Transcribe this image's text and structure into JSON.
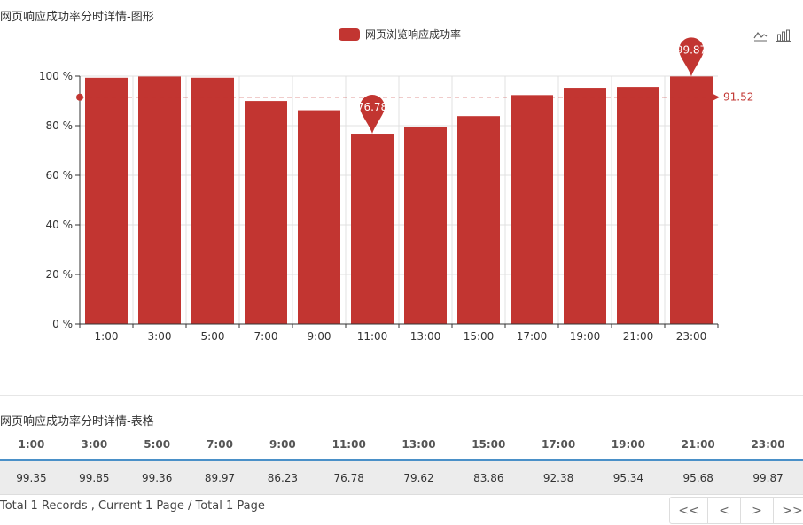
{
  "chart_section": {
    "title": "网页响应成功率分时详情-图形",
    "legend_label": "网页浏览响应成功率",
    "toolbox": {
      "line_icon": "line-chart-icon",
      "bar_icon": "bar-chart-icon"
    }
  },
  "chart_data": {
    "type": "bar",
    "categories": [
      "1:00",
      "3:00",
      "5:00",
      "7:00",
      "9:00",
      "11:00",
      "13:00",
      "15:00",
      "17:00",
      "19:00",
      "21:00",
      "23:00"
    ],
    "series": [
      {
        "name": "网页浏览响应成功率",
        "values": [
          99.35,
          99.85,
          99.36,
          89.97,
          86.23,
          76.78,
          79.62,
          83.86,
          92.38,
          95.34,
          95.68,
          99.87
        ],
        "color": "#c23531"
      }
    ],
    "ylim": [
      0,
      100
    ],
    "yticks": [
      0,
      20,
      40,
      60,
      80,
      100
    ],
    "ytick_labels": [
      "0 %",
      "20 %",
      "40 %",
      "60 %",
      "80 %",
      "100 %"
    ],
    "mark_points": [
      {
        "category": "11:00",
        "value": 76.78,
        "label": "76.78"
      },
      {
        "category": "23:00",
        "value": 99.87,
        "label": "99.87"
      }
    ],
    "mark_line": {
      "value": 91.52,
      "label": "91.52"
    },
    "grid": true,
    "legend_position": "top-center"
  },
  "table_section": {
    "title": "网页响应成功率分时详情-表格",
    "headers": [
      "1:00",
      "3:00",
      "5:00",
      "7:00",
      "9:00",
      "11:00",
      "13:00",
      "15:00",
      "17:00",
      "19:00",
      "21:00",
      "23:00"
    ],
    "row": [
      "99.35",
      "99.85",
      "99.36",
      "89.97",
      "86.23",
      "76.78",
      "79.62",
      "83.86",
      "92.38",
      "95.34",
      "95.68",
      "99.87"
    ]
  },
  "footer": {
    "info": "Total 1 Records , Current 1 Page / Total 1 Page",
    "pager": {
      "first": "<<",
      "prev": "<",
      "next": ">",
      "last": ">>"
    }
  },
  "colors": {
    "bar": "#c23531",
    "table_header_border": "#4a90c8",
    "table_row_bg": "#ececec"
  }
}
